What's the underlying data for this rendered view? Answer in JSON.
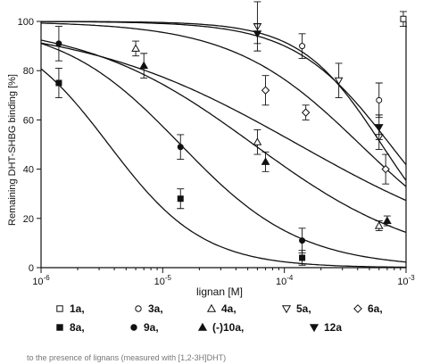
{
  "chart_data": {
    "type": "scatter",
    "title": "",
    "xlabel": "lignan [M]",
    "ylabel": "Remaining DHT-SHBG binding [%]",
    "xscale": "log",
    "xlim": [
      1e-06,
      0.001
    ],
    "ylim": [
      0,
      100
    ],
    "yticks": [
      0,
      20,
      40,
      60,
      80,
      100
    ],
    "xtick_labels": [
      {
        "base": "10",
        "exp": "-6",
        "value": 1e-06
      },
      {
        "base": "10",
        "exp": "-5",
        "value": 1e-05
      },
      {
        "base": "10",
        "exp": "-4",
        "value": 0.0001
      },
      {
        "base": "10",
        "exp": "-3",
        "value": 0.001
      }
    ],
    "grid": false,
    "legend_position": "bottom",
    "series": [
      {
        "name": "1a",
        "marker": "open-square",
        "points": [
          {
            "x": 0.00095,
            "y": 101,
            "err": 3
          }
        ]
      },
      {
        "name": "3a",
        "marker": "open-circle",
        "points": [
          {
            "x": 0.00014,
            "y": 90,
            "err": 5
          },
          {
            "x": 0.0006,
            "y": 68,
            "err": 7
          }
        ]
      },
      {
        "name": "4a",
        "marker": "open-triangle-up",
        "points": [
          {
            "x": 6e-06,
            "y": 89,
            "err": 3
          },
          {
            "x": 6e-05,
            "y": 51,
            "err": 5
          },
          {
            "x": 0.0006,
            "y": 17,
            "err": 2
          }
        ]
      },
      {
        "name": "5a",
        "marker": "open-triangle-down",
        "points": [
          {
            "x": 6e-05,
            "y": 98,
            "err": 10
          },
          {
            "x": 0.00028,
            "y": 76,
            "err": 7
          },
          {
            "x": 0.0006,
            "y": 53,
            "err": 5
          }
        ]
      },
      {
        "name": "6a",
        "marker": "open-diamond",
        "points": [
          {
            "x": 7e-05,
            "y": 72,
            "err": 6
          },
          {
            "x": 0.00015,
            "y": 63,
            "err": 3
          },
          {
            "x": 0.00068,
            "y": 40,
            "err": 6
          }
        ]
      },
      {
        "name": "8a",
        "marker": "filled-square",
        "points": [
          {
            "x": 1.4e-06,
            "y": 75,
            "err": 6
          },
          {
            "x": 1.4e-05,
            "y": 28,
            "err": 4
          },
          {
            "x": 0.00014,
            "y": 4,
            "err": 3
          }
        ]
      },
      {
        "name": "9a",
        "marker": "filled-circle",
        "points": [
          {
            "x": 1.4e-06,
            "y": 91,
            "err": 7
          },
          {
            "x": 1.4e-05,
            "y": 49,
            "err": 5
          },
          {
            "x": 0.00014,
            "y": 11,
            "err": 5
          }
        ]
      },
      {
        "name": "(-)10a",
        "marker": "filled-triangle-up",
        "points": [
          {
            "x": 7e-06,
            "y": 82,
            "err": 5
          },
          {
            "x": 7e-05,
            "y": 43,
            "err": 4
          },
          {
            "x": 0.0007,
            "y": 19,
            "err": 2
          }
        ]
      },
      {
        "name": "12a",
        "marker": "filled-triangle-down",
        "points": [
          {
            "x": 6e-05,
            "y": 95,
            "err": 4
          },
          {
            "x": 0.0006,
            "y": 57,
            "err": 5
          }
        ]
      }
    ],
    "fit_curves": [
      {
        "ic50": 3.6e-06,
        "hill": 1.12
      },
      {
        "ic50": 1.4e-05,
        "hill": 0.88
      },
      {
        "ic50": 5.6e-05,
        "hill": 0.62
      },
      {
        "ic50": 0.00013,
        "hill": 0.48
      },
      {
        "ic50": 0.00042,
        "hill": 0.82
      },
      {
        "ic50": 0.00063,
        "hill": 1.3
      },
      {
        "ic50": 0.00074,
        "hill": 1.1
      }
    ]
  },
  "legend": [
    {
      "label": "1a,",
      "marker": "open-square"
    },
    {
      "label": "3a,",
      "marker": "open-circle"
    },
    {
      "label": "4a,",
      "marker": "open-triangle-up"
    },
    {
      "label": "5a,",
      "marker": "open-triangle-down"
    },
    {
      "label": "6a,",
      "marker": "open-diamond"
    },
    {
      "label": "8a,",
      "marker": "filled-square"
    },
    {
      "label": "9a,",
      "marker": "filled-circle"
    },
    {
      "label": "(-)10a,",
      "marker": "filled-triangle-up"
    },
    {
      "label": "12a",
      "marker": "filled-triangle-down"
    }
  ],
  "footer_text": "to the presence of lignans (measured with [1,2-3H]DHT)"
}
